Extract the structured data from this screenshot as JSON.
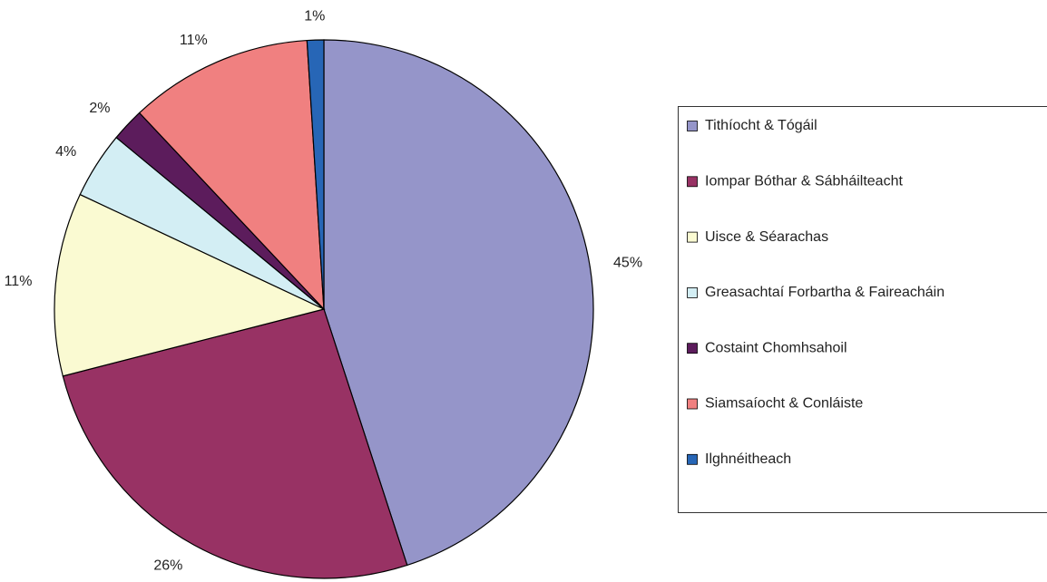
{
  "chart_data": {
    "type": "pie",
    "categories": [
      "Tithíocht & Tógáil",
      "Iompar Bóthar & Sábháilteacht",
      "Uisce & Séarachas",
      "Greasachtaí Forbartha & Faireacháin",
      "Costaint Chomhsahoil",
      "Siamsaíocht & Conláiste",
      "Ilghnéitheach"
    ],
    "values": [
      45,
      26,
      11,
      4,
      2,
      11,
      1
    ],
    "value_labels": [
      "45%",
      "26%",
      "11%",
      "4%",
      "2%",
      "11%",
      "1%"
    ],
    "colors": [
      "#9595c9",
      "#983264",
      "#fafad2",
      "#d3eef4",
      "#5c1c5c",
      "#f08080",
      "#2766b6"
    ],
    "legend": "right"
  }
}
